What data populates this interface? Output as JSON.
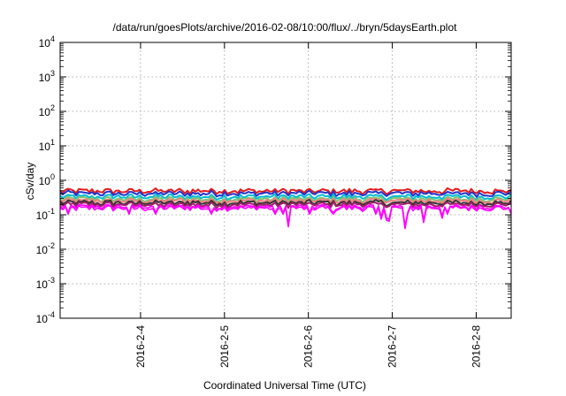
{
  "chart_data": {
    "type": "line",
    "title": "/data/run/goesPlots/archive/2016-02-08/10:00/flux/../bryn/5daysEarth.plot",
    "xlabel": "Coordinated Universal Time (UTC)",
    "ylabel": "cSv/day",
    "yscale": "log",
    "ylim": [
      0.0001,
      10000
    ],
    "y_ticks": [
      {
        "value": 0.0001,
        "base": "10",
        "exp": "-4"
      },
      {
        "value": 0.001,
        "base": "10",
        "exp": "-3"
      },
      {
        "value": 0.01,
        "base": "10",
        "exp": "-2"
      },
      {
        "value": 0.1,
        "base": "10",
        "exp": "-1"
      },
      {
        "value": 1,
        "base": "10",
        "exp": "0"
      },
      {
        "value": 10,
        "base": "10",
        "exp": "1"
      },
      {
        "value": 100,
        "base": "10",
        "exp": "2"
      },
      {
        "value": 1000,
        "base": "10",
        "exp": "3"
      },
      {
        "value": 10000,
        "base": "10",
        "exp": "4"
      }
    ],
    "xlim": [
      "2016-02-03T01:00",
      "2016-02-08T10:00"
    ],
    "x_ticks": [
      {
        "value": "2016-02-04T00:00",
        "label": "2016-2-4"
      },
      {
        "value": "2016-02-05T00:00",
        "label": "2016-2-5"
      },
      {
        "value": "2016-02-06T00:00",
        "label": "2016-2-6"
      },
      {
        "value": "2016-02-07T00:00",
        "label": "2016-2-7"
      },
      {
        "value": "2016-02-08T00:00",
        "label": "2016-2-8"
      }
    ],
    "grid": true,
    "legend": "none",
    "series": [
      {
        "color": "#e41a1c",
        "base": 0.47
      },
      {
        "color": "#2233cc",
        "base": 0.4
      },
      {
        "color": "#00bcd4",
        "base": 0.32
      },
      {
        "color": "#7cc576",
        "base": 0.275
      },
      {
        "color": "#f08080",
        "base": 0.245
      },
      {
        "color": "#333333",
        "base": 0.215
      },
      {
        "color": "#a0206a",
        "base": 0.19
      },
      {
        "color": "#ff00ff",
        "base": 0.165
      },
      {
        "color": "#ff00ff",
        "base": 0.15
      }
    ],
    "dips": [
      {
        "time": "2016-02-05T18:00",
        "value": 0.045
      },
      {
        "time": "2016-02-06T21:00",
        "value": 0.075
      },
      {
        "time": "2016-02-06T22:00",
        "value": 0.07
      },
      {
        "time": "2016-02-06T23:00",
        "value": 0.065
      },
      {
        "time": "2016-02-07T04:00",
        "value": 0.04
      },
      {
        "time": "2016-02-07T09:00",
        "value": 0.06
      },
      {
        "time": "2016-02-07T14:00",
        "value": 0.08
      }
    ]
  }
}
